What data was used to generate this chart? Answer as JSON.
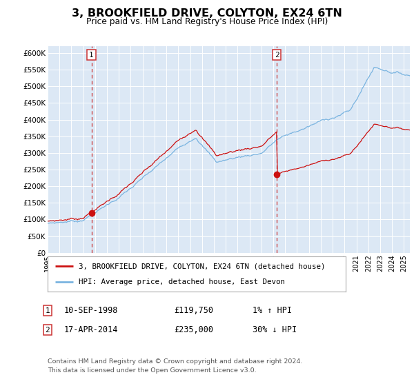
{
  "title": "3, BROOKFIELD DRIVE, COLYTON, EX24 6TN",
  "subtitle": "Price paid vs. HM Land Registry's House Price Index (HPI)",
  "ylim": [
    0,
    620000
  ],
  "xlim_start": 1995.0,
  "xlim_end": 2025.5,
  "yticks": [
    0,
    50000,
    100000,
    150000,
    200000,
    250000,
    300000,
    350000,
    400000,
    450000,
    500000,
    550000,
    600000
  ],
  "ytick_labels": [
    "£0",
    "£50K",
    "£100K",
    "£150K",
    "£200K",
    "£250K",
    "£300K",
    "£350K",
    "£400K",
    "£450K",
    "£500K",
    "£550K",
    "£600K"
  ],
  "xticks": [
    1995,
    1996,
    1997,
    1998,
    1999,
    2000,
    2001,
    2002,
    2003,
    2004,
    2005,
    2006,
    2007,
    2008,
    2009,
    2010,
    2011,
    2012,
    2013,
    2014,
    2015,
    2016,
    2017,
    2018,
    2019,
    2020,
    2021,
    2022,
    2023,
    2024,
    2025
  ],
  "hpi_color": "#7ab4e0",
  "price_color": "#cc1111",
  "marker_color": "#cc1111",
  "vline_color": "#cc3333",
  "plot_bg_color": "#dce8f5",
  "grid_color": "#c0cfe0",
  "sale1_x": 1998.69,
  "sale1_y": 119750,
  "sale2_x": 2014.29,
  "sale2_y": 235000,
  "legend_label_price": "3, BROOKFIELD DRIVE, COLYTON, EX24 6TN (detached house)",
  "legend_label_hpi": "HPI: Average price, detached house, East Devon",
  "table_row1": [
    "1",
    "10-SEP-1998",
    "£119,750",
    "1% ↑ HPI"
  ],
  "table_row2": [
    "2",
    "17-APR-2014",
    "£235,000",
    "30% ↓ HPI"
  ],
  "footnote1": "Contains HM Land Registry data © Crown copyright and database right 2024.",
  "footnote2": "This data is licensed under the Open Government Licence v3.0."
}
